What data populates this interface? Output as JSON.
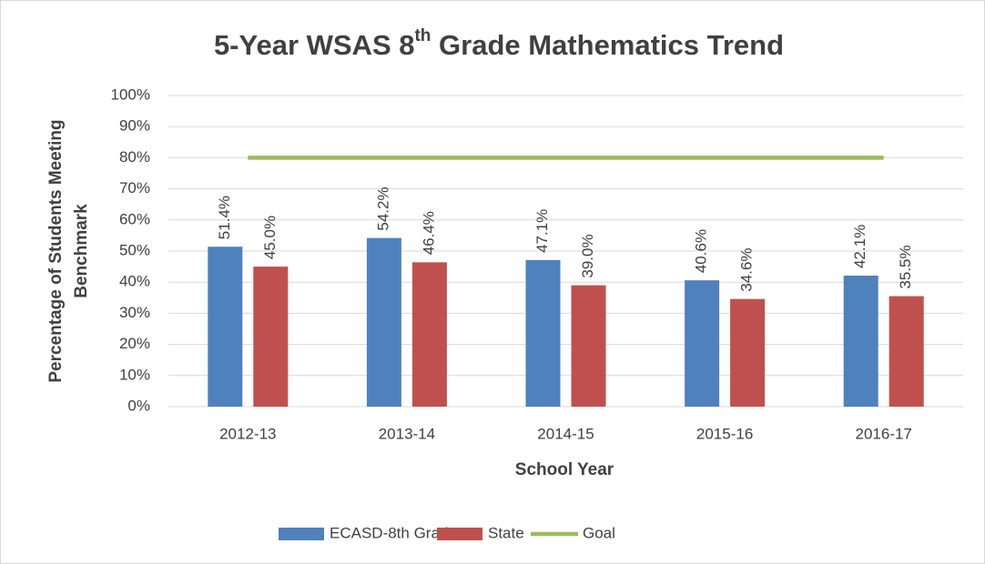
{
  "chart_data": {
    "type": "bar",
    "title": {
      "text": "5-Year WSAS 8",
      "superscript": "th",
      "rest": " Grade Mathematics Trend"
    },
    "x_label": "School Year",
    "y_label": [
      "Percentage of Students Meeting",
      "Benchmark"
    ],
    "categories": [
      "2012-13",
      "2013-14",
      "2014-15",
      "2015-16",
      "2016-17"
    ],
    "series": [
      {
        "name": "ECASD-8th Grade",
        "color": "#4f81bd",
        "type": "bar",
        "values": [
          51.4,
          54.2,
          47.1,
          40.6,
          42.1
        ],
        "value_labels": [
          "51.4%",
          "54.2%",
          "47.1%",
          "40.6%",
          "42.1%"
        ]
      },
      {
        "name": "State",
        "color": "#c0504d",
        "type": "bar",
        "values": [
          45.0,
          46.4,
          39.0,
          34.6,
          35.5
        ],
        "value_labels": [
          "45.0%",
          "46.4%",
          "39.0%",
          "34.6%",
          "35.5%"
        ]
      },
      {
        "name": "Goal",
        "color": "#9bbb59",
        "type": "line",
        "values": [
          80,
          80,
          80,
          80,
          80
        ]
      }
    ],
    "ylim": [
      0,
      100
    ],
    "yticks": [
      {
        "value": 0,
        "label": "0%"
      },
      {
        "value": 10,
        "label": "10%"
      },
      {
        "value": 20,
        "label": "20%"
      },
      {
        "value": 30,
        "label": "30%"
      },
      {
        "value": 40,
        "label": "40%"
      },
      {
        "value": 50,
        "label": "50%"
      },
      {
        "value": 60,
        "label": "60%"
      },
      {
        "value": 70,
        "label": "70%"
      },
      {
        "value": 80,
        "label": "80%"
      },
      {
        "value": 90,
        "label": "90%"
      },
      {
        "value": 100,
        "label": "100%"
      }
    ],
    "grid": true,
    "legend": "bottom"
  }
}
